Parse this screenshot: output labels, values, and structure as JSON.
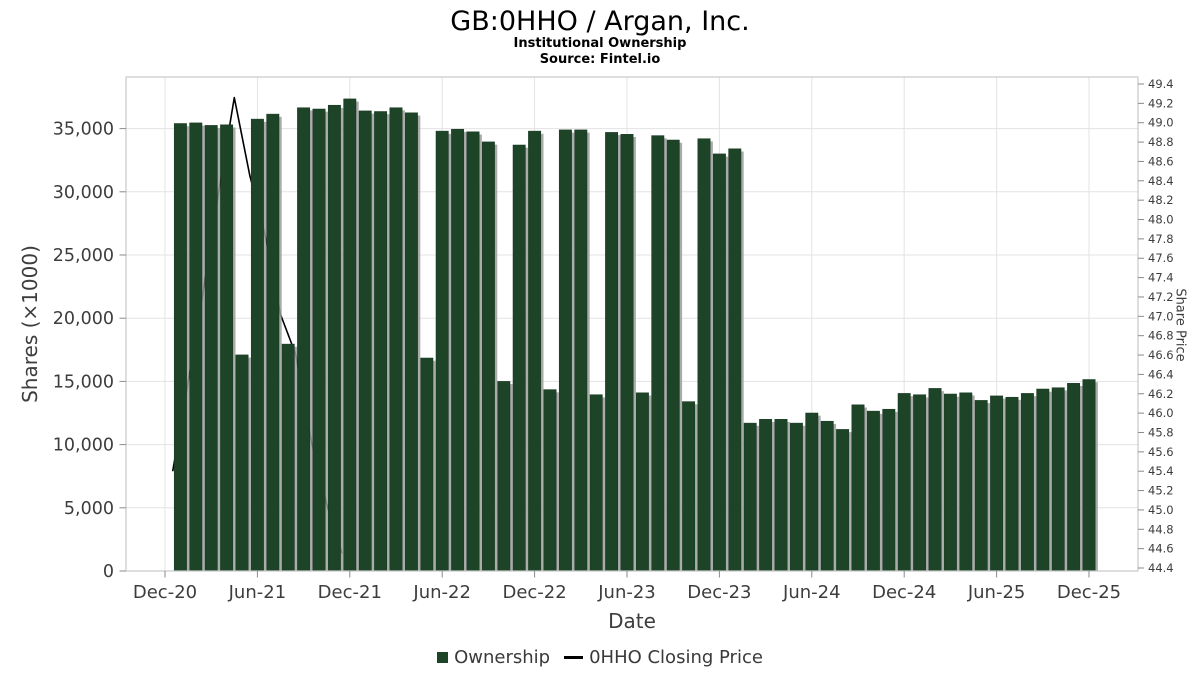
{
  "chart_data": {
    "type": "bar+line",
    "title": "GB:0HHO / Argan, Inc.",
    "subtitle": "Institutional Ownership",
    "source_label": "Source: Fintel.io",
    "xlabel": "Date",
    "ylabel_left": "Shares (×1000)",
    "ylabel_right": "Share Price",
    "grid": true,
    "legend_position": "bottom-center",
    "x_tick_labels": [
      "Dec-20",
      "Jun-21",
      "Dec-21",
      "Jun-22",
      "Dec-22",
      "Jun-23",
      "Dec-23",
      "Jun-24",
      "Dec-24",
      "Jun-25",
      "Dec-25"
    ],
    "left_axis": {
      "tick_values": [
        0,
        5000,
        10000,
        15000,
        20000,
        25000,
        30000,
        35000
      ],
      "tick_labels": [
        "0",
        "5,000",
        "10,000",
        "15,000",
        "20,000",
        "25,000",
        "30,000",
        "35,000"
      ],
      "range": [
        0,
        39100
      ]
    },
    "right_axis": {
      "min": 44.4,
      "max": 49.4,
      "step": 0.2,
      "tick_labels": [
        "44.4",
        "44.6",
        "44.8",
        "45.0",
        "45.2",
        "45.4",
        "45.6",
        "45.8",
        "46.0",
        "46.2",
        "46.4",
        "46.6",
        "46.8",
        "47.0",
        "47.2",
        "47.4",
        "47.6",
        "47.8",
        "48.0",
        "48.2",
        "48.4",
        "48.6",
        "48.8",
        "49.0",
        "49.2",
        "49.4"
      ]
    },
    "series": [
      {
        "name": "Ownership",
        "type": "bar",
        "color": "#1d4427",
        "categories": [
          "Jan-21",
          "Feb-21",
          "Mar-21",
          "Apr-21",
          "May-21",
          "Jun-21",
          "Jul-21",
          "Aug-21",
          "Sep-21",
          "Oct-21",
          "Nov-21",
          "Dec-21",
          "Jan-22",
          "Feb-22",
          "Mar-22",
          "Apr-22",
          "May-22",
          "Jun-22",
          "Jul-22",
          "Aug-22",
          "Sep-22",
          "Oct-22",
          "Nov-22",
          "Dec-22",
          "Jan-23",
          "Feb-23",
          "Mar-23",
          "Apr-23",
          "May-23",
          "Jun-23",
          "Jul-23",
          "Aug-23",
          "Sep-23",
          "Oct-23",
          "Nov-23",
          "Dec-23",
          "Jan-24",
          "Feb-24",
          "Mar-24",
          "Apr-24",
          "May-24",
          "Jun-24",
          "Jul-24",
          "Aug-24",
          "Sep-24",
          "Oct-24",
          "Nov-24",
          "Dec-24",
          "Jan-25",
          "Feb-25",
          "Mar-25",
          "Apr-25",
          "May-25",
          "Jun-25",
          "Jul-25",
          "Aug-25",
          "Sep-25",
          "Oct-25",
          "Nov-25",
          "Dec-25"
        ],
        "values": [
          35400,
          35450,
          35250,
          35300,
          17100,
          35750,
          36150,
          17950,
          36650,
          36550,
          36850,
          37350,
          36400,
          36350,
          36650,
          36250,
          16850,
          34800,
          34950,
          34750,
          33950,
          15000,
          33700,
          34800,
          14350,
          34900,
          34900,
          13950,
          34700,
          34550,
          14100,
          34450,
          34100,
          13400,
          34200,
          33000,
          33400,
          11700,
          12000,
          12000,
          11700,
          12500,
          11850,
          11200,
          13150,
          12650,
          12800,
          14050,
          13950,
          14450,
          14000,
          14100,
          13500,
          13850,
          13750,
          14050,
          14400,
          14500,
          14850,
          15150
        ]
      },
      {
        "name": "0HHO Closing Price",
        "type": "line",
        "color": "#000000",
        "plotted_at": "month-end",
        "categories": [
          "Dec-20",
          "Jan-21",
          "Feb-21",
          "Mar-21",
          "Apr-21",
          "May-21",
          "Jun-21",
          "Jul-21",
          "Aug-21",
          "Sep-21",
          "Oct-21",
          "Nov-21"
        ],
        "values": [
          45.4,
          46.32,
          47.27,
          48.3,
          49.26,
          48.46,
          47.84,
          47.02,
          46.6,
          45.71,
          45.06,
          44.55
        ]
      }
    ]
  }
}
